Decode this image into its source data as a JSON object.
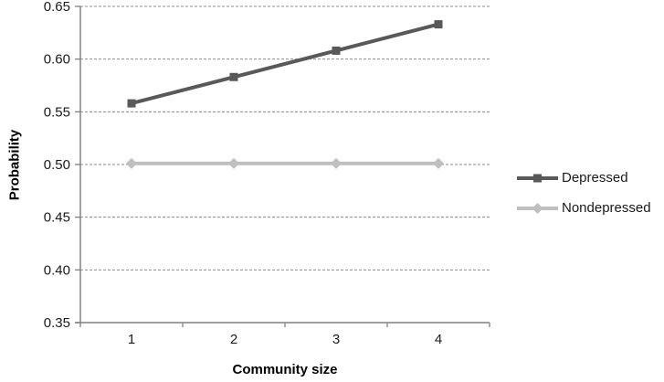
{
  "chart_data": {
    "type": "line",
    "categories": [
      "1",
      "2",
      "3",
      "4"
    ],
    "series": [
      {
        "name": "Depressed",
        "values": [
          0.558,
          0.583,
          0.608,
          0.633
        ],
        "color": "#595959",
        "marker": "square"
      },
      {
        "name": "Nondepressed",
        "values": [
          0.501,
          0.501,
          0.501,
          0.501
        ],
        "color": "#bfbfbf",
        "marker": "diamond"
      }
    ],
    "title": "",
    "xlabel": "Community size",
    "ylabel": "Probability",
    "ylim": [
      0.35,
      0.65
    ],
    "ytick_step": 0.05,
    "ytick_decimals": 2,
    "grid": "horizontal-dashed",
    "legend_position": "right"
  },
  "colors": {
    "axis": "#808080",
    "gridline": "#8c8c8c",
    "tick_text": "#1a1a1a"
  }
}
